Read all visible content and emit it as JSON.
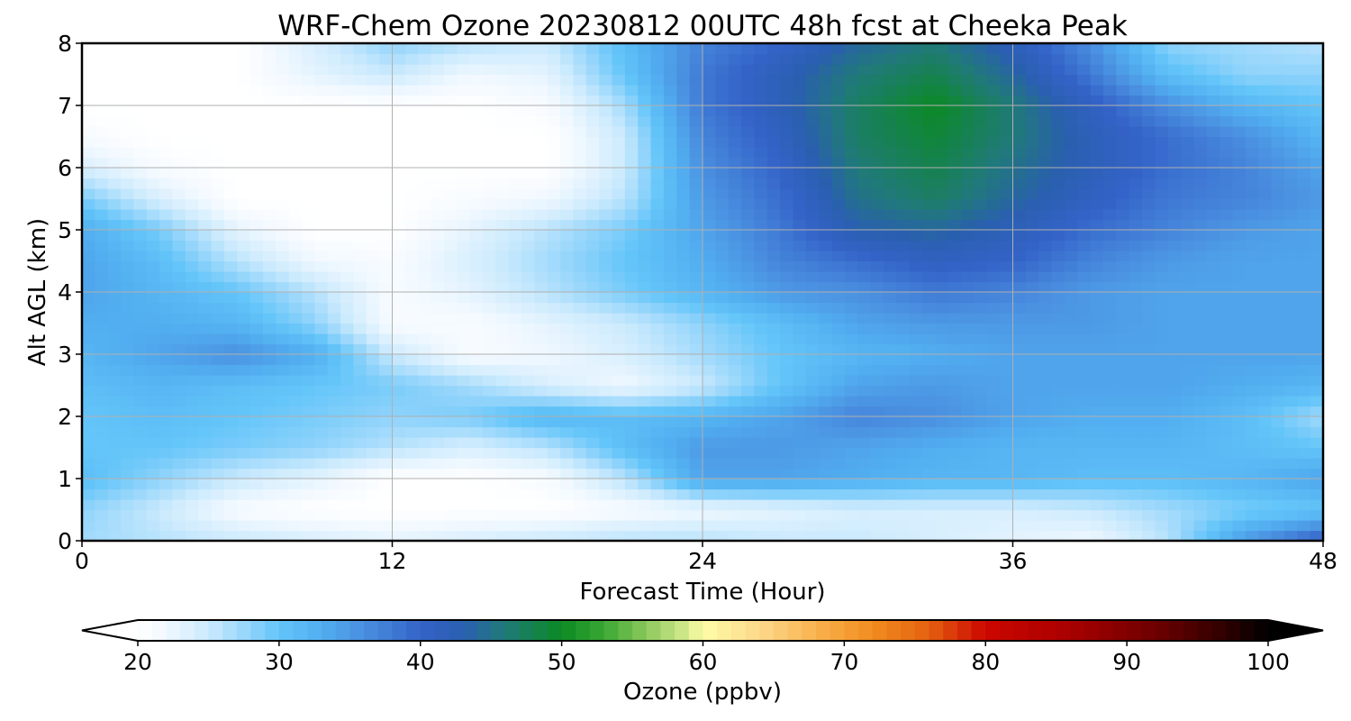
{
  "chart_data": {
    "type": "heatmap",
    "title": "WRF-Chem Ozone  20230812 00UTC 48h fcst at Cheeka Peak",
    "xlabel": "Forecast Time (Hour)",
    "ylabel": "Alt AGL (km)",
    "xlim": [
      0,
      48
    ],
    "ylim": [
      0,
      8
    ],
    "xticks": [
      0,
      12,
      24,
      36,
      48
    ],
    "yticks": [
      0,
      1,
      2,
      3,
      4,
      5,
      6,
      7,
      8
    ],
    "grid": true,
    "x": [
      0,
      3,
      6,
      9,
      12,
      15,
      18,
      21,
      24,
      27,
      30,
      33,
      36,
      39,
      42,
      45,
      48
    ],
    "y": [
      0,
      0.5,
      1,
      1.5,
      2,
      2.5,
      3,
      3.5,
      4,
      4.5,
      5,
      5.5,
      6,
      6.5,
      7,
      7.5,
      8
    ],
    "z": [
      [
        27,
        26,
        25,
        24,
        23,
        24,
        25,
        26,
        26,
        25,
        25,
        24,
        23,
        22,
        26,
        35,
        41
      ],
      [
        28,
        25,
        21,
        20,
        20,
        20,
        20,
        21,
        22,
        23,
        24,
        24,
        24,
        25,
        27,
        29,
        30
      ],
      [
        31,
        28,
        25,
        23,
        20,
        20,
        21,
        26,
        34,
        34,
        33,
        32,
        32,
        31,
        31,
        32,
        34
      ],
      [
        30,
        30,
        29,
        28,
        26,
        24,
        26,
        31,
        35,
        35,
        34,
        33,
        32,
        32,
        32,
        31,
        30
      ],
      [
        30,
        31,
        30,
        29,
        28,
        29,
        32,
        31,
        32,
        34,
        37,
        36,
        34,
        33,
        33,
        31,
        27
      ],
      [
        31,
        32,
        31,
        30,
        29,
        27,
        24,
        22,
        25,
        30,
        34,
        35,
        34,
        34,
        34,
        33,
        32
      ],
      [
        32,
        34,
        36,
        33,
        25,
        21,
        22,
        24,
        27,
        30,
        32,
        33,
        34,
        34,
        34,
        34,
        34
      ],
      [
        33,
        33,
        32,
        28,
        21,
        21,
        23,
        25,
        28,
        31,
        34,
        35,
        35,
        35,
        34,
        34,
        34
      ],
      [
        34,
        32,
        30,
        26,
        21,
        23,
        26,
        29,
        32,
        35,
        36,
        38,
        37,
        35,
        34,
        34,
        34
      ],
      [
        34,
        31,
        26,
        22,
        21,
        24,
        27,
        30,
        33,
        37,
        39,
        41,
        40,
        37,
        35,
        34,
        34
      ],
      [
        33,
        29,
        23,
        20,
        20,
        23,
        26,
        29,
        34,
        38,
        43,
        44,
        42,
        39,
        37,
        35,
        34
      ],
      [
        29,
        24,
        20,
        20,
        20,
        21,
        22,
        26,
        35,
        39,
        45,
        47,
        44,
        41,
        38,
        37,
        35
      ],
      [
        24,
        21,
        20,
        20,
        20,
        20,
        20,
        25,
        36,
        40,
        46,
        48,
        45,
        42,
        39,
        37,
        34
      ],
      [
        21,
        20,
        20,
        20,
        20,
        20,
        20,
        25,
        37,
        41,
        47,
        49,
        46,
        42,
        39,
        36,
        32
      ],
      [
        20,
        20,
        20,
        20,
        20,
        20,
        21,
        27,
        38,
        42,
        47,
        50,
        46,
        41,
        36,
        32,
        30
      ],
      [
        20,
        20,
        20,
        23,
        25,
        22,
        23,
        30,
        38,
        42,
        46,
        48,
        44,
        38,
        31,
        28,
        28
      ],
      [
        20,
        20,
        20,
        24,
        28,
        26,
        25,
        31,
        37,
        40,
        44,
        46,
        42,
        36,
        28,
        27,
        26
      ]
    ],
    "colorbar": {
      "label": "Ozone  (ppbv)",
      "min": 20,
      "max": 100,
      "ticks": [
        20,
        30,
        40,
        50,
        60,
        70,
        80,
        90,
        100
      ],
      "extend": "both",
      "colors": [
        {
          "v": 20,
          "c": "#ffffff"
        },
        {
          "v": 22,
          "c": "#f0f8ff"
        },
        {
          "v": 25,
          "c": "#cbeafd"
        },
        {
          "v": 28,
          "c": "#8fd3fb"
        },
        {
          "v": 30,
          "c": "#63c5f9"
        },
        {
          "v": 33,
          "c": "#52aef0"
        },
        {
          "v": 36,
          "c": "#4a8fe0"
        },
        {
          "v": 40,
          "c": "#3463c8"
        },
        {
          "v": 43,
          "c": "#2a5fb0"
        },
        {
          "v": 46,
          "c": "#207a78"
        },
        {
          "v": 50,
          "c": "#0b8a23"
        },
        {
          "v": 53,
          "c": "#3aa734"
        },
        {
          "v": 56,
          "c": "#8cc85c"
        },
        {
          "v": 59,
          "c": "#d8ec8f"
        },
        {
          "v": 60,
          "c": "#fffca8"
        },
        {
          "v": 64,
          "c": "#fcd98a"
        },
        {
          "v": 68,
          "c": "#f9b24e"
        },
        {
          "v": 72,
          "c": "#f18c1f"
        },
        {
          "v": 76,
          "c": "#e46010"
        },
        {
          "v": 80,
          "c": "#cc0600"
        },
        {
          "v": 86,
          "c": "#a80000"
        },
        {
          "v": 92,
          "c": "#6e0000"
        },
        {
          "v": 97,
          "c": "#2e0000"
        },
        {
          "v": 100,
          "c": "#000000"
        }
      ]
    }
  }
}
